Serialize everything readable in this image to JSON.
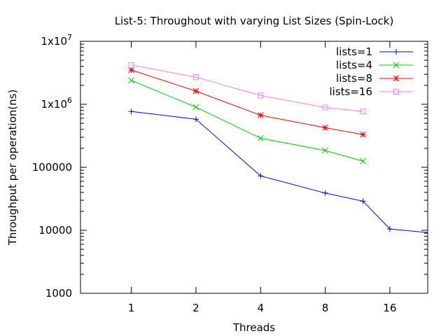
{
  "chart_data": {
    "type": "line",
    "title": "List-5: Throughout with varying List Sizes (Spin-Lock)",
    "xlabel": "Threads",
    "ylabel": "Throughput per operation(ns)",
    "x_scale": "log2",
    "y_scale": "log10",
    "xlim": [
      0.58,
      24
    ],
    "ylim": [
      1000,
      10000000
    ],
    "x_ticks": [
      {
        "value": 1,
        "label": "1"
      },
      {
        "value": 2,
        "label": "2"
      },
      {
        "value": 4,
        "label": "4"
      },
      {
        "value": 8,
        "label": "8"
      },
      {
        "value": 16,
        "label": "16"
      }
    ],
    "y_ticks": [
      {
        "value": 1000,
        "label": "1000"
      },
      {
        "value": 10000,
        "label": "10000"
      },
      {
        "value": 100000,
        "label": "100000"
      },
      {
        "value": 1000000,
        "label": "1x10",
        "sup": "6"
      },
      {
        "value": 10000000,
        "label": "1x10",
        "sup": "7"
      }
    ],
    "grid": false,
    "legend_position": "top-right",
    "series": [
      {
        "name": "lists=1",
        "color": "#0000ff",
        "marker": "plus",
        "x": [
          1,
          2,
          4,
          8,
          12,
          16,
          24
        ],
        "y": [
          770000,
          580000,
          73000,
          39000,
          29000,
          10500,
          9200
        ]
      },
      {
        "name": "lists=4",
        "color": "#00cc00",
        "marker": "cross",
        "x": [
          1,
          2,
          4,
          8,
          12
        ],
        "y": [
          2400000,
          900000,
          290000,
          185000,
          125000
        ]
      },
      {
        "name": "lists=8",
        "color": "#ff0000",
        "marker": "star",
        "x": [
          1,
          2,
          4,
          8,
          12
        ],
        "y": [
          3500000,
          1620000,
          670000,
          425000,
          330000
        ]
      },
      {
        "name": "lists=16",
        "color": "#ee82ee",
        "marker": "square",
        "x": [
          1,
          2,
          4,
          8,
          12
        ],
        "y": [
          4200000,
          2700000,
          1380000,
          890000,
          770000
        ]
      }
    ]
  }
}
